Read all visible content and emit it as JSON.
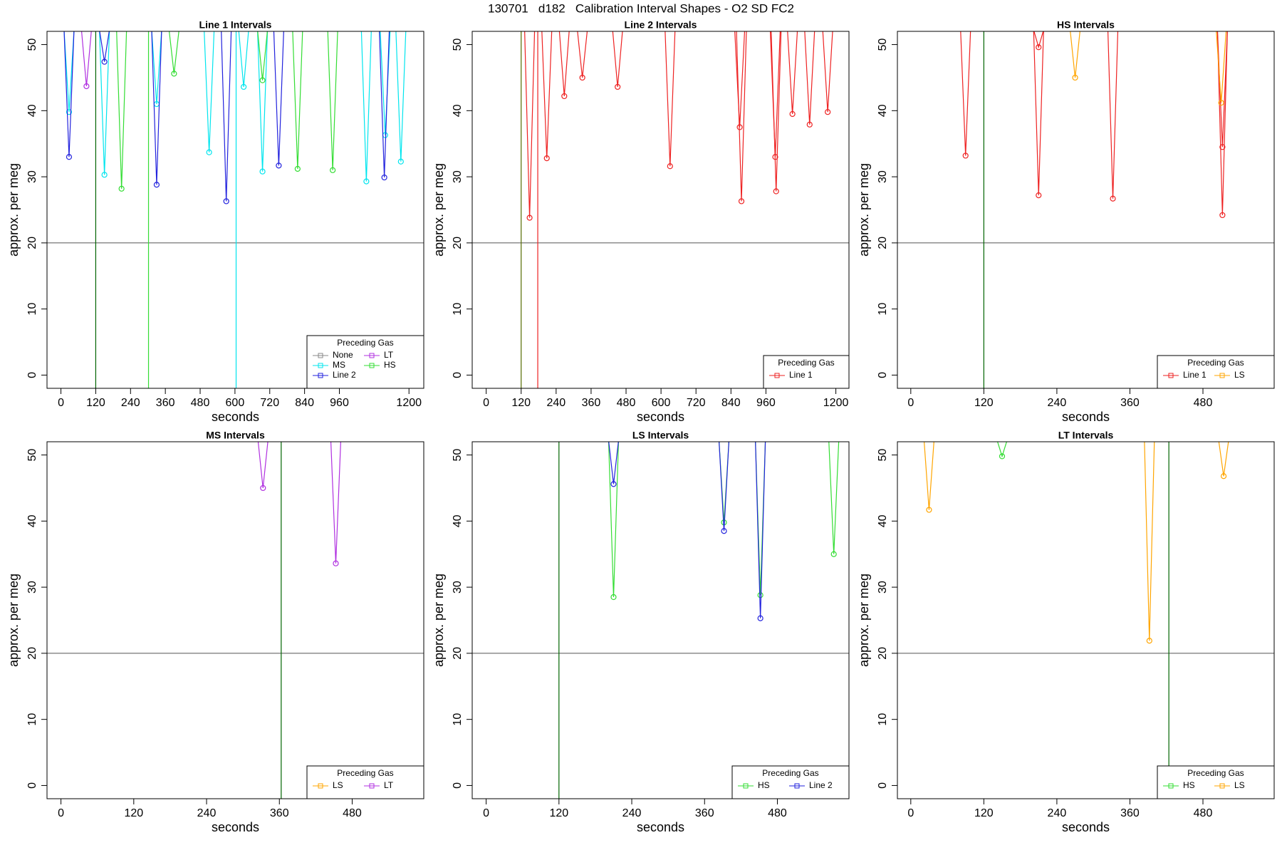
{
  "title": "130701   d182   Calibration Interval Shapes - O2 SD FC2",
  "chart_data": [
    {
      "type": "scatter",
      "title": "Line 1 Intervals",
      "x_label": "seconds",
      "y_label": "approx. per meg",
      "xlim": [
        -48,
        1251
      ],
      "ylim": [
        -2,
        52
      ],
      "xticks": [
        0,
        120,
        240,
        360,
        480,
        600,
        720,
        840,
        960,
        1200
      ],
      "yticks": [
        0,
        10,
        20,
        30,
        40,
        50
      ],
      "hline": 20,
      "vlines": [
        {
          "x": 120,
          "color": "#006400"
        },
        {
          "x": 302,
          "color": "#33dd33"
        },
        {
          "x": 604,
          "color": "#00e5ee"
        }
      ],
      "legend_title": "Preceding Gas",
      "legend_columns": 2,
      "series": [
        {
          "name": "None",
          "color": "#888888",
          "x": [],
          "values": []
        },
        {
          "name": "MS",
          "color": "#00e5ee",
          "x": [
            28,
            150,
            330,
            511,
            630,
            695,
            1053,
            1118,
            1172
          ],
          "values": [
            39.8,
            30.3,
            41,
            33.7,
            43.6,
            30.8,
            29.3,
            36.3,
            32.3
          ]
        },
        {
          "name": "Line 2",
          "color": "#2222dd",
          "x": [
            28,
            150,
            330,
            570,
            751,
            1115
          ],
          "values": [
            33,
            47.4,
            28.8,
            26.3,
            31.7,
            29.9
          ]
        },
        {
          "name": "LT",
          "color": "#b030e0",
          "x": [
            88
          ],
          "values": [
            43.7
          ]
        },
        {
          "name": "HS",
          "color": "#33dd33",
          "x": [
            209,
            390,
            695,
            816,
            937
          ],
          "values": [
            28.2,
            45.6,
            44.6,
            31.2,
            31
          ]
        }
      ]
    },
    {
      "type": "scatter",
      "title": "Line 2 Intervals",
      "x_label": "seconds",
      "y_label": "approx. per meg",
      "xlim": [
        -48,
        1245
      ],
      "ylim": [
        -2,
        52
      ],
      "xticks": [
        0,
        120,
        240,
        360,
        480,
        600,
        720,
        840,
        960,
        1200
      ],
      "yticks": [
        0,
        10,
        20,
        30,
        40,
        50
      ],
      "hline": 20,
      "vlines": [
        {
          "x": 120,
          "color": "#556b00"
        },
        {
          "x": 177,
          "color": "#ee2222"
        }
      ],
      "legend_title": "Preceding Gas",
      "legend_columns": 1,
      "series": [
        {
          "name": "Line 1",
          "color": "#ee2222",
          "x": [
            149,
            208,
            268,
            330,
            451,
            631,
            870,
            876,
            992,
            995,
            1051,
            1110,
            1172
          ],
          "values": [
            23.8,
            32.8,
            42.2,
            45,
            43.6,
            31.6,
            37.5,
            26.3,
            33,
            27.8,
            39.5,
            37.9,
            39.8
          ]
        }
      ]
    },
    {
      "type": "scatter",
      "title": "HS Intervals",
      "x_label": "seconds",
      "y_label": "approx. per meg",
      "xlim": [
        -22,
        597
      ],
      "ylim": [
        -2,
        52
      ],
      "xticks": [
        0,
        120,
        240,
        360,
        480
      ],
      "yticks": [
        0,
        10,
        20,
        30,
        40,
        50
      ],
      "hline": 20,
      "vlines": [
        {
          "x": 120,
          "color": "#006400"
        }
      ],
      "legend_title": "Preceding Gas",
      "legend_columns": 2,
      "series": [
        {
          "name": "Line 1",
          "color": "#ee2222",
          "x": [
            90,
            210,
            210,
            332,
            512,
            512
          ],
          "values": [
            33.2,
            27.2,
            49.6,
            26.7,
            24.2,
            34.5
          ]
        },
        {
          "name": "LS",
          "color": "#ffa500",
          "x": [
            270,
            510
          ],
          "values": [
            45,
            41.2
          ]
        }
      ]
    },
    {
      "type": "scatter",
      "title": "MS Intervals",
      "x_label": "seconds",
      "y_label": "approx. per meg",
      "xlim": [
        -23,
        598
      ],
      "ylim": [
        -2,
        52
      ],
      "xticks": [
        0,
        120,
        240,
        360,
        480
      ],
      "yticks": [
        0,
        10,
        20,
        30,
        40,
        50
      ],
      "hline": 20,
      "vlines": [
        {
          "x": 363,
          "color": "#006400"
        }
      ],
      "legend_title": "Preceding Gas",
      "legend_columns": 2,
      "series": [
        {
          "name": "LS",
          "color": "#ffa500",
          "x": [],
          "values": []
        },
        {
          "name": "LT",
          "color": "#b030e0",
          "x": [
            333,
            453
          ],
          "values": [
            45,
            33.6
          ]
        }
      ]
    },
    {
      "type": "scatter",
      "title": "LS Intervals",
      "x_label": "seconds",
      "y_label": "approx. per meg",
      "xlim": [
        -23,
        598
      ],
      "ylim": [
        -2,
        52
      ],
      "xticks": [
        0,
        120,
        240,
        360,
        480
      ],
      "yticks": [
        0,
        10,
        20,
        30,
        40,
        50
      ],
      "hline": 20,
      "vlines": [
        {
          "x": 120,
          "color": "#006400"
        }
      ],
      "legend_title": "Preceding Gas",
      "legend_columns": 2,
      "series": [
        {
          "name": "HS",
          "color": "#33dd33",
          "x": [
            210,
            392,
            452,
            573
          ],
          "values": [
            28.5,
            39.8,
            28.8,
            35
          ]
        },
        {
          "name": "Line 2",
          "color": "#2222dd",
          "x": [
            210,
            392,
            452
          ],
          "values": [
            45.6,
            38.5,
            25.3
          ]
        }
      ]
    },
    {
      "type": "scatter",
      "title": "LT Intervals",
      "x_label": "seconds",
      "y_label": "approx. per meg",
      "xlim": [
        -22,
        597
      ],
      "ylim": [
        -2,
        52
      ],
      "xticks": [
        0,
        120,
        240,
        360,
        480
      ],
      "yticks": [
        0,
        10,
        20,
        30,
        40,
        50
      ],
      "hline": 20,
      "vlines": [
        {
          "x": 424,
          "color": "#006400"
        }
      ],
      "legend_title": "Preceding Gas",
      "legend_columns": 2,
      "series": [
        {
          "name": "HS",
          "color": "#33dd33",
          "x": [
            150
          ],
          "values": [
            49.8
          ]
        },
        {
          "name": "LS",
          "color": "#ffa500",
          "x": [
            30,
            392,
            514
          ],
          "values": [
            41.7,
            21.9,
            46.8
          ]
        }
      ]
    }
  ]
}
